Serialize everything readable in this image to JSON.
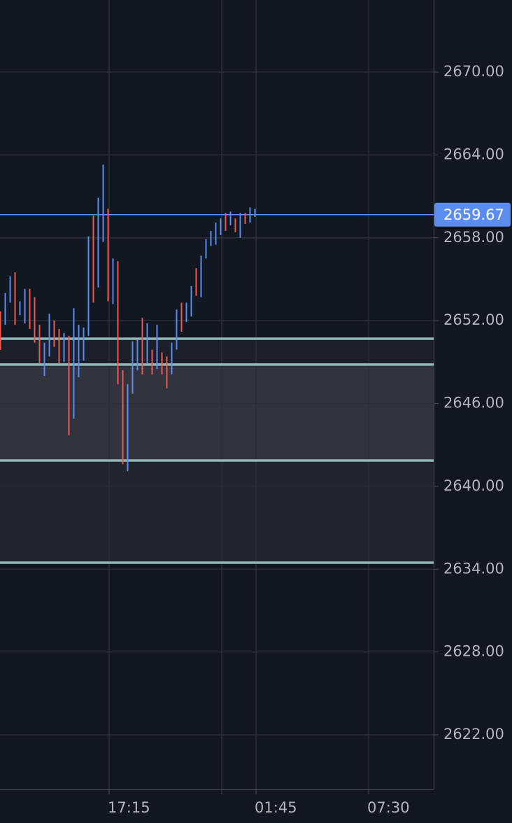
{
  "chart_data": {
    "type": "ohlc",
    "high": [
      2652.67,
      2654.0,
      2655.2,
      2655.5,
      2653.4,
      2654.3,
      2654.3,
      2653.7,
      2651.7,
      2650.4,
      2652.5,
      2652.0,
      2651.4,
      2651.1,
      2650.9,
      2652.9,
      2651.7,
      2651.5,
      2658.1,
      2659.6,
      2660.9,
      2663.3,
      2660.1,
      2656.5,
      2656.3,
      2648.4,
      2647.4,
      2650.5,
      2650.6,
      2652.2,
      2651.8,
      2649.9,
      2651.7,
      2649.7,
      2649.4,
      2650.4,
      2652.8,
      2653.3,
      2653.3,
      2654.5,
      2655.8,
      2656.7,
      2657.9,
      2658.5,
      2659.1,
      2659.4,
      2659.8,
      2659.9,
      2659.4,
      2659.8,
      2659.8,
      2660.2,
      2660.1
    ],
    "low": [
      2649.88,
      2651.7,
      2653.3,
      2651.7,
      2652.4,
      2651.8,
      2651.4,
      2650.4,
      2648.9,
      2648.0,
      2649.4,
      2650.1,
      2648.9,
      2649.0,
      2643.7,
      2644.9,
      2647.9,
      2649.1,
      2650.9,
      2653.3,
      2654.4,
      2657.7,
      2653.4,
      2653.2,
      2647.4,
      2641.6,
      2641.1,
      2646.7,
      2648.4,
      2648.1,
      2648.9,
      2648.1,
      2648.5,
      2648.1,
      2647.1,
      2648.1,
      2649.9,
      2651.2,
      2651.9,
      2652.3,
      2653.8,
      2653.7,
      2656.5,
      2657.4,
      2657.5,
      2658.2,
      2658.5,
      2658.9,
      2658.4,
      2658.0,
      2659.0,
      2659.1,
      2659.5
    ],
    "direction": [
      "down",
      "up",
      "up",
      "down",
      "up",
      "up",
      "down",
      "down",
      "down",
      "up",
      "up",
      "down",
      "down",
      "up",
      "down",
      "up",
      "up",
      "up",
      "up",
      "down",
      "up",
      "up",
      "down",
      "up",
      "down",
      "down",
      "up",
      "up",
      "up",
      "down",
      "up",
      "down",
      "up",
      "down",
      "down",
      "up",
      "up",
      "down",
      "up",
      "up",
      "down",
      "up",
      "up",
      "up",
      "up",
      "up",
      "down",
      "up",
      "down",
      "up",
      "down",
      "up",
      "up"
    ],
    "up_color": "#5b8cf0",
    "down_color": "#f0584f",
    "xlim": [
      0,
      88.57
    ],
    "xticks": [
      {
        "value": 22.29,
        "label": "17:15"
      },
      {
        "value": 52.29,
        "label": "01:45"
      },
      {
        "value": 75.29,
        "label": "07:30"
      }
    ],
    "x_gridlines": [
      45.29
    ],
    "ylim": [
      2618.05,
      2675.22
    ],
    "yticks": [
      {
        "value": 2622,
        "label": "2622.00"
      },
      {
        "value": 2628,
        "label": "2628.00"
      },
      {
        "value": 2634,
        "label": "2634.00"
      },
      {
        "value": 2640,
        "label": "2640.00"
      },
      {
        "value": 2646,
        "label": "2646.00"
      },
      {
        "value": 2652,
        "label": "2652.00"
      },
      {
        "value": 2658,
        "label": "2658.00"
      },
      {
        "value": 2664,
        "label": "2664.00"
      },
      {
        "value": 2670,
        "label": "2670.00"
      }
    ],
    "grid": true,
    "zones": [
      {
        "from": 2648.82,
        "to": 2650.69,
        "color": "#1c202b"
      },
      {
        "from": 2641.87,
        "to": 2648.82,
        "color": "#31333f"
      },
      {
        "from": 2634.47,
        "to": 2641.87,
        "color": "#22252f"
      }
    ],
    "levels": [
      2650.69,
      2648.82,
      2641.87,
      2634.47
    ],
    "level_color": "#8fb8b8",
    "last_price": {
      "value": 2659.67,
      "label": "2659.67",
      "color": "#5b8cf0"
    }
  }
}
